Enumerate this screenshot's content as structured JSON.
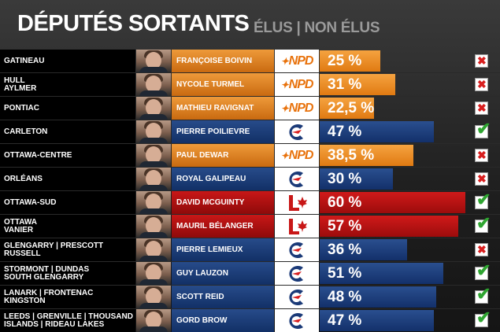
{
  "header": {
    "title": "DÉPUTÉS SORTANTS",
    "subtitle": "ÉLUS | NON ÉLUS"
  },
  "colors": {
    "ndp": "#e8720c",
    "conservative": "#1b3a78",
    "liberal": "#c81717",
    "elected_check": "#2fa531",
    "not_elected_x": "#d81e1e"
  },
  "rows": [
    {
      "riding": "GATINEAU",
      "candidate": "FRANÇOISE BOIVIN",
      "party": "NPD",
      "percent": "25 %",
      "share": 25,
      "elected": false
    },
    {
      "riding": "HULL\nAYLMER",
      "candidate": "NYCOLE TURMEL",
      "party": "NPD",
      "percent": "31 %",
      "share": 31,
      "elected": false
    },
    {
      "riding": "PONTIAC",
      "candidate": "MATHIEU RAVIGNAT",
      "party": "NPD",
      "percent": "22,5 %",
      "share": 22.5,
      "elected": false
    },
    {
      "riding": "CARLETON",
      "candidate": "PIERRE POILIEVRE",
      "party": "PCC",
      "percent": "47 %",
      "share": 47,
      "elected": true
    },
    {
      "riding": "OTTAWA-CENTRE",
      "candidate": "PAUL DEWAR",
      "party": "NPD",
      "percent": "38,5 %",
      "share": 38.5,
      "elected": false
    },
    {
      "riding": "ORLÉANS",
      "candidate": "ROYAL GALIPEAU",
      "party": "PCC",
      "percent": "30 %",
      "share": 30,
      "elected": false
    },
    {
      "riding": "OTTAWA-SUD",
      "candidate": "DAVID MCGUINTY",
      "party": "PLC",
      "percent": "60 %",
      "share": 60,
      "elected": true
    },
    {
      "riding": "OTTAWA\nVANIER",
      "candidate": "MAURIL BÉLANGER",
      "party": "PLC",
      "percent": "57 %",
      "share": 57,
      "elected": true
    },
    {
      "riding": "GLENGARRY | PRESCOTT\nRUSSELL",
      "candidate": "PIERRE LEMIEUX",
      "party": "PCC",
      "percent": "36 %",
      "share": 36,
      "elected": false
    },
    {
      "riding": "STORMONT | DUNDAS\nSOUTH GLENGARRY",
      "candidate": "GUY LAUZON",
      "party": "PCC",
      "percent": "51 %",
      "share": 51,
      "elected": true
    },
    {
      "riding": "LANARK | FRONTENAC\nKINGSTON",
      "candidate": "SCOTT REID",
      "party": "PCC",
      "percent": "48 %",
      "share": 48,
      "elected": true
    },
    {
      "riding": "LEEDS | GRENVILLE | THOUSAND\nISLANDS | RIDEAU LAKES",
      "candidate": "GORD BROW",
      "party": "PCC",
      "percent": "47 %",
      "share": 47,
      "elected": true
    }
  ]
}
